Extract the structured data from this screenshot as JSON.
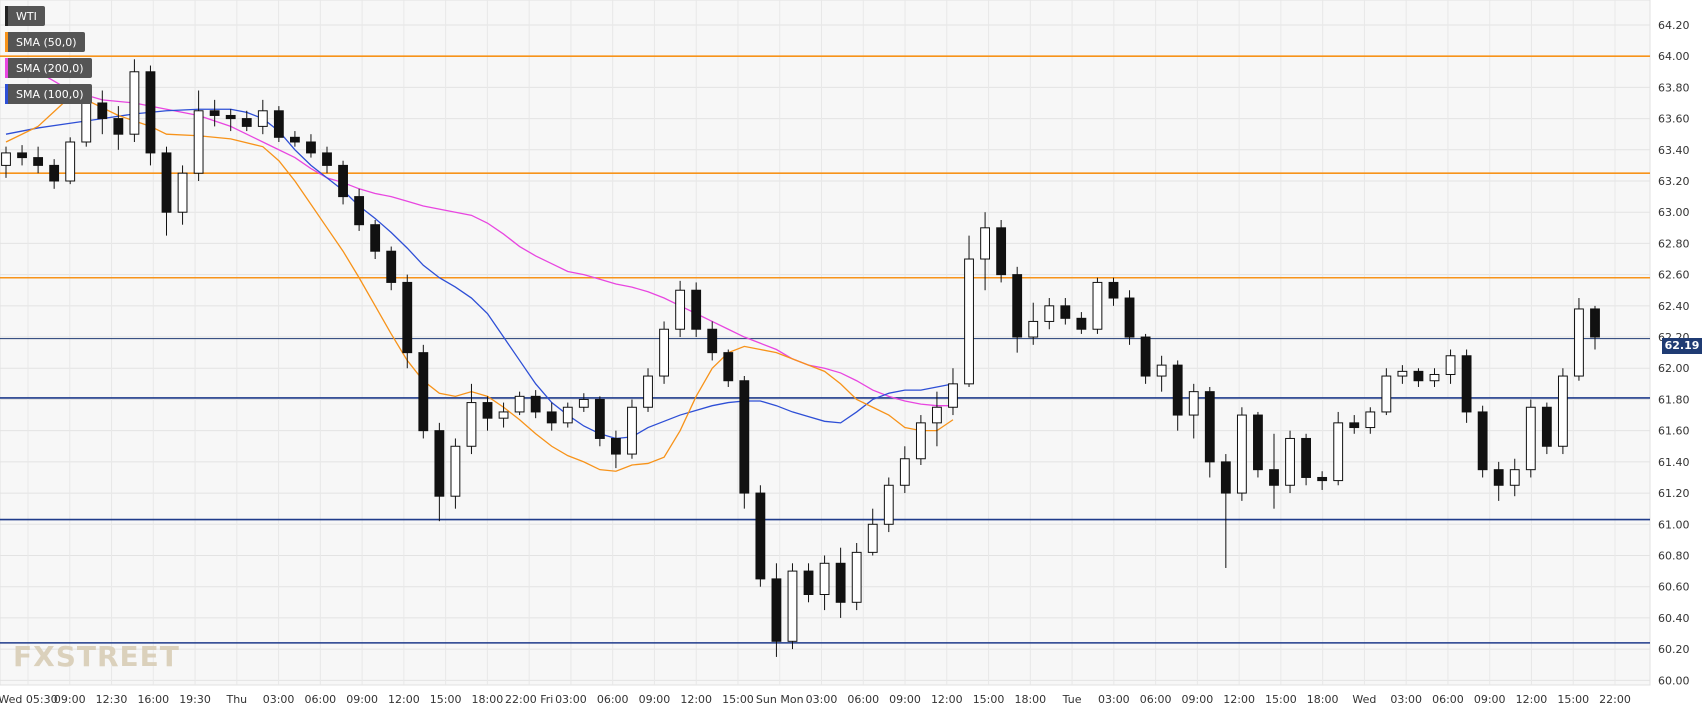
{
  "chart_data": {
    "type": "candlestick",
    "instrument": "WTI",
    "x_tick_labels": [
      "Wed 05:30",
      "09:00",
      "12:30",
      "16:00",
      "19:30",
      "Thu",
      "03:00",
      "06:00",
      "09:00",
      "12:00",
      "15:00",
      "18:00",
      "22:00 Fri",
      "03:00",
      "06:00",
      "09:00",
      "12:00",
      "15:00",
      "Sun Mon",
      "03:00",
      "06:00",
      "09:00",
      "12:00",
      "15:00",
      "18:00",
      "Tue",
      "03:00",
      "06:00",
      "09:00",
      "12:00",
      "15:00",
      "18:00",
      "Wed",
      "03:00",
      "06:00",
      "09:00",
      "12:00",
      "15:00",
      "22:00"
    ],
    "y_ticks": [
      60.0,
      60.2,
      60.4,
      60.6,
      60.8,
      61.0,
      61.2,
      61.4,
      61.6,
      61.8,
      62.0,
      62.2,
      62.4,
      62.6,
      62.8,
      63.0,
      63.2,
      63.4,
      63.6,
      63.8,
      64.0,
      64.2
    ],
    "y_tick_labels": [
      "60.00",
      "60.20",
      "60.40",
      "60.60",
      "60.80",
      "61.00",
      "61.20",
      "61.40",
      "61.60",
      "61.80",
      "62.00",
      "62.20",
      "62.40",
      "62.60",
      "62.80",
      "63.00",
      "63.20",
      "63.40",
      "63.60",
      "63.80",
      "64.00",
      "64.20"
    ],
    "ylim": [
      59.97,
      64.36
    ],
    "current_price": 62.19,
    "current_price_label": "62.19",
    "resistance_levels": [
      64.0,
      63.25,
      62.58
    ],
    "support_levels": [
      61.81,
      61.03,
      60.24
    ],
    "legend": [
      {
        "label": "WTI",
        "color": "#222222"
      },
      {
        "label": "SMA (50,0)",
        "color": "#f7931a"
      },
      {
        "label": "SMA (200,0)",
        "color": "#e846e0"
      },
      {
        "label": "SMA (100,0)",
        "color": "#2e4fd6"
      }
    ],
    "sma50": [
      [
        0,
        63.45
      ],
      [
        2,
        63.55
      ],
      [
        4,
        63.74
      ],
      [
        5,
        63.72
      ],
      [
        7,
        63.62
      ],
      [
        9,
        63.55
      ],
      [
        10,
        63.5
      ],
      [
        12,
        63.49
      ],
      [
        14,
        63.47
      ],
      [
        16,
        63.42
      ],
      [
        17,
        63.33
      ],
      [
        18,
        63.2
      ],
      [
        19,
        63.05
      ],
      [
        20,
        62.9
      ],
      [
        21,
        62.75
      ],
      [
        22,
        62.58
      ],
      [
        23,
        62.4
      ],
      [
        24,
        62.22
      ],
      [
        25,
        62.05
      ],
      [
        26,
        61.92
      ],
      [
        27,
        61.84
      ],
      [
        28,
        61.82
      ],
      [
        29,
        61.85
      ],
      [
        30,
        61.82
      ],
      [
        31,
        61.75
      ],
      [
        32,
        61.67
      ],
      [
        33,
        61.58
      ],
      [
        34,
        61.5
      ],
      [
        35,
        61.44
      ],
      [
        36,
        61.4
      ],
      [
        37,
        61.35
      ],
      [
        38,
        61.34
      ],
      [
        39,
        61.38
      ],
      [
        40,
        61.39
      ],
      [
        41,
        61.43
      ],
      [
        42,
        61.6
      ],
      [
        43,
        61.82
      ],
      [
        44,
        62.0
      ],
      [
        45,
        62.1
      ],
      [
        46,
        62.14
      ],
      [
        47,
        62.12
      ],
      [
        48,
        62.1
      ],
      [
        49,
        62.06
      ],
      [
        50,
        62.02
      ],
      [
        51,
        61.98
      ],
      [
        52,
        61.9
      ],
      [
        53,
        61.8
      ],
      [
        54,
        61.75
      ],
      [
        55,
        61.7
      ],
      [
        56,
        61.62
      ],
      [
        57,
        61.6
      ],
      [
        58,
        61.6
      ],
      [
        59,
        61.67
      ]
    ],
    "sma100": [
      [
        0,
        63.5
      ],
      [
        2,
        63.54
      ],
      [
        4,
        63.57
      ],
      [
        6,
        63.6
      ],
      [
        8,
        63.63
      ],
      [
        10,
        63.65
      ],
      [
        12,
        63.66
      ],
      [
        14,
        63.66
      ],
      [
        15,
        63.64
      ],
      [
        16,
        63.6
      ],
      [
        17,
        63.52
      ],
      [
        18,
        63.4
      ],
      [
        19,
        63.3
      ],
      [
        20,
        63.22
      ],
      [
        21,
        63.14
      ],
      [
        22,
        63.04
      ],
      [
        23,
        62.96
      ],
      [
        24,
        62.87
      ],
      [
        25,
        62.77
      ],
      [
        26,
        62.66
      ],
      [
        27,
        62.58
      ],
      [
        28,
        62.52
      ],
      [
        29,
        62.45
      ],
      [
        30,
        62.35
      ],
      [
        31,
        62.2
      ],
      [
        32,
        62.05
      ],
      [
        33,
        61.9
      ],
      [
        34,
        61.78
      ],
      [
        35,
        61.7
      ],
      [
        36,
        61.63
      ],
      [
        37,
        61.58
      ],
      [
        38,
        61.55
      ],
      [
        39,
        61.56
      ],
      [
        40,
        61.62
      ],
      [
        41,
        61.66
      ],
      [
        42,
        61.7
      ],
      [
        43,
        61.73
      ],
      [
        44,
        61.76
      ],
      [
        45,
        61.78
      ],
      [
        46,
        61.79
      ],
      [
        47,
        61.79
      ],
      [
        48,
        61.76
      ],
      [
        49,
        61.72
      ],
      [
        50,
        61.69
      ],
      [
        51,
        61.66
      ],
      [
        52,
        61.65
      ],
      [
        53,
        61.72
      ],
      [
        54,
        61.8
      ],
      [
        55,
        61.84
      ],
      [
        56,
        61.86
      ],
      [
        57,
        61.86
      ],
      [
        58,
        61.88
      ],
      [
        59,
        61.9
      ]
    ],
    "sma200": [
      [
        0,
        63.96
      ],
      [
        2,
        63.9
      ],
      [
        4,
        63.78
      ],
      [
        6,
        63.72
      ],
      [
        8,
        63.7
      ],
      [
        10,
        63.66
      ],
      [
        12,
        63.62
      ],
      [
        14,
        63.55
      ],
      [
        16,
        63.45
      ],
      [
        18,
        63.35
      ],
      [
        19,
        63.28
      ],
      [
        20,
        63.22
      ],
      [
        21,
        63.19
      ],
      [
        22,
        63.15
      ],
      [
        23,
        63.12
      ],
      [
        24,
        63.1
      ],
      [
        25,
        63.07
      ],
      [
        26,
        63.04
      ],
      [
        27,
        63.02
      ],
      [
        28,
        63.0
      ],
      [
        29,
        62.98
      ],
      [
        30,
        62.93
      ],
      [
        31,
        62.86
      ],
      [
        32,
        62.78
      ],
      [
        33,
        62.72
      ],
      [
        34,
        62.67
      ],
      [
        35,
        62.62
      ],
      [
        36,
        62.6
      ],
      [
        37,
        62.57
      ],
      [
        38,
        62.54
      ],
      [
        39,
        62.52
      ],
      [
        40,
        62.49
      ],
      [
        41,
        62.45
      ],
      [
        42,
        62.4
      ],
      [
        43,
        62.35
      ],
      [
        44,
        62.3
      ],
      [
        45,
        62.25
      ],
      [
        46,
        62.2
      ],
      [
        47,
        62.16
      ],
      [
        48,
        62.12
      ],
      [
        49,
        62.06
      ],
      [
        50,
        62.02
      ],
      [
        51,
        62.0
      ],
      [
        52,
        61.97
      ],
      [
        53,
        61.92
      ],
      [
        54,
        61.86
      ],
      [
        55,
        61.82
      ],
      [
        56,
        61.79
      ],
      [
        57,
        61.77
      ],
      [
        58,
        61.76
      ],
      [
        59,
        61.76
      ]
    ],
    "ohlc": [
      {
        "o": 63.3,
        "h": 63.42,
        "l": 63.22,
        "c": 63.38
      },
      {
        "o": 63.38,
        "h": 63.43,
        "l": 63.3,
        "c": 63.35
      },
      {
        "o": 63.35,
        "h": 63.42,
        "l": 63.25,
        "c": 63.3
      },
      {
        "o": 63.3,
        "h": 63.34,
        "l": 63.15,
        "c": 63.2
      },
      {
        "o": 63.2,
        "h": 63.48,
        "l": 63.18,
        "c": 63.45
      },
      {
        "o": 63.45,
        "h": 63.72,
        "l": 63.42,
        "c": 63.7
      },
      {
        "o": 63.7,
        "h": 63.78,
        "l": 63.5,
        "c": 63.6
      },
      {
        "o": 63.6,
        "h": 63.68,
        "l": 63.4,
        "c": 63.5
      },
      {
        "o": 63.5,
        "h": 63.98,
        "l": 63.45,
        "c": 63.9
      },
      {
        "o": 63.9,
        "h": 63.94,
        "l": 63.3,
        "c": 63.38
      },
      {
        "o": 63.38,
        "h": 63.42,
        "l": 62.85,
        "c": 63.0
      },
      {
        "o": 63.0,
        "h": 63.3,
        "l": 62.92,
        "c": 63.25
      },
      {
        "o": 63.25,
        "h": 63.78,
        "l": 63.2,
        "c": 63.65
      },
      {
        "o": 63.65,
        "h": 63.72,
        "l": 63.55,
        "c": 63.62
      },
      {
        "o": 63.62,
        "h": 63.66,
        "l": 63.52,
        "c": 63.6
      },
      {
        "o": 63.6,
        "h": 63.65,
        "l": 63.52,
        "c": 63.55
      },
      {
        "o": 63.55,
        "h": 63.72,
        "l": 63.5,
        "c": 63.65
      },
      {
        "o": 63.65,
        "h": 63.68,
        "l": 63.45,
        "c": 63.48
      },
      {
        "o": 63.48,
        "h": 63.52,
        "l": 63.42,
        "c": 63.45
      },
      {
        "o": 63.45,
        "h": 63.5,
        "l": 63.35,
        "c": 63.38
      },
      {
        "o": 63.38,
        "h": 63.42,
        "l": 63.25,
        "c": 63.3
      },
      {
        "o": 63.3,
        "h": 63.33,
        "l": 63.05,
        "c": 63.1
      },
      {
        "o": 63.1,
        "h": 63.15,
        "l": 62.88,
        "c": 62.92
      },
      {
        "o": 62.92,
        "h": 62.95,
        "l": 62.7,
        "c": 62.75
      },
      {
        "o": 62.75,
        "h": 62.78,
        "l": 62.5,
        "c": 62.55
      },
      {
        "o": 62.55,
        "h": 62.6,
        "l": 62.0,
        "c": 62.1
      },
      {
        "o": 62.1,
        "h": 62.15,
        "l": 61.55,
        "c": 61.6
      },
      {
        "o": 61.6,
        "h": 61.65,
        "l": 61.02,
        "c": 61.18
      },
      {
        "o": 61.18,
        "h": 61.55,
        "l": 61.1,
        "c": 61.5
      },
      {
        "o": 61.5,
        "h": 61.9,
        "l": 61.45,
        "c": 61.78
      },
      {
        "o": 61.78,
        "h": 61.82,
        "l": 61.6,
        "c": 61.68
      },
      {
        "o": 61.68,
        "h": 61.78,
        "l": 61.62,
        "c": 61.72
      },
      {
        "o": 61.72,
        "h": 61.85,
        "l": 61.7,
        "c": 61.82
      },
      {
        "o": 61.82,
        "h": 61.86,
        "l": 61.68,
        "c": 61.72
      },
      {
        "o": 61.72,
        "h": 61.78,
        "l": 61.6,
        "c": 61.65
      },
      {
        "o": 61.65,
        "h": 61.78,
        "l": 61.62,
        "c": 61.75
      },
      {
        "o": 61.75,
        "h": 61.84,
        "l": 61.72,
        "c": 61.8
      },
      {
        "o": 61.8,
        "h": 61.82,
        "l": 61.5,
        "c": 61.55
      },
      {
        "o": 61.55,
        "h": 61.6,
        "l": 61.36,
        "c": 61.45
      },
      {
        "o": 61.45,
        "h": 61.8,
        "l": 61.42,
        "c": 61.75
      },
      {
        "o": 61.75,
        "h": 62.0,
        "l": 61.72,
        "c": 61.95
      },
      {
        "o": 61.95,
        "h": 62.3,
        "l": 61.9,
        "c": 62.25
      },
      {
        "o": 62.25,
        "h": 62.56,
        "l": 62.2,
        "c": 62.5
      },
      {
        "o": 62.5,
        "h": 62.55,
        "l": 62.2,
        "c": 62.25
      },
      {
        "o": 62.25,
        "h": 62.3,
        "l": 62.05,
        "c": 62.1
      },
      {
        "o": 62.1,
        "h": 62.12,
        "l": 61.88,
        "c": 61.92
      },
      {
        "o": 61.92,
        "h": 61.95,
        "l": 61.1,
        "c": 61.2
      },
      {
        "o": 61.2,
        "h": 61.25,
        "l": 60.6,
        "c": 60.65
      },
      {
        "o": 60.65,
        "h": 60.75,
        "l": 60.15,
        "c": 60.25
      },
      {
        "o": 60.25,
        "h": 60.75,
        "l": 60.2,
        "c": 60.7
      },
      {
        "o": 60.7,
        "h": 60.75,
        "l": 60.5,
        "c": 60.55
      },
      {
        "o": 60.55,
        "h": 60.8,
        "l": 60.45,
        "c": 60.75
      },
      {
        "o": 60.75,
        "h": 60.85,
        "l": 60.4,
        "c": 60.5
      },
      {
        "o": 60.5,
        "h": 60.88,
        "l": 60.45,
        "c": 60.82
      },
      {
        "o": 60.82,
        "h": 61.1,
        "l": 60.8,
        "c": 61.0
      },
      {
        "o": 61.0,
        "h": 61.3,
        "l": 60.95,
        "c": 61.25
      },
      {
        "o": 61.25,
        "h": 61.5,
        "l": 61.2,
        "c": 61.42
      },
      {
        "o": 61.42,
        "h": 61.7,
        "l": 61.38,
        "c": 61.65
      },
      {
        "o": 61.65,
        "h": 61.85,
        "l": 61.5,
        "c": 61.75
      },
      {
        "o": 61.75,
        "h": 62.0,
        "l": 61.7,
        "c": 61.9
      },
      {
        "o": 61.9,
        "h": 62.85,
        "l": 61.88,
        "c": 62.7
      },
      {
        "o": 62.7,
        "h": 63.0,
        "l": 62.5,
        "c": 62.9
      },
      {
        "o": 62.9,
        "h": 62.95,
        "l": 62.55,
        "c": 62.6
      },
      {
        "o": 62.6,
        "h": 62.65,
        "l": 62.1,
        "c": 62.2
      },
      {
        "o": 62.2,
        "h": 62.42,
        "l": 62.15,
        "c": 62.3
      },
      {
        "o": 62.3,
        "h": 62.45,
        "l": 62.25,
        "c": 62.4
      },
      {
        "o": 62.4,
        "h": 62.45,
        "l": 62.28,
        "c": 62.32
      },
      {
        "o": 62.32,
        "h": 62.36,
        "l": 62.22,
        "c": 62.25
      },
      {
        "o": 62.25,
        "h": 62.58,
        "l": 62.22,
        "c": 62.55
      },
      {
        "o": 62.55,
        "h": 62.58,
        "l": 62.4,
        "c": 62.45
      },
      {
        "o": 62.45,
        "h": 62.5,
        "l": 62.15,
        "c": 62.2
      },
      {
        "o": 62.2,
        "h": 62.22,
        "l": 61.9,
        "c": 61.95
      },
      {
        "o": 61.95,
        "h": 62.08,
        "l": 61.85,
        "c": 62.02
      },
      {
        "o": 62.02,
        "h": 62.05,
        "l": 61.6,
        "c": 61.7
      },
      {
        "o": 61.7,
        "h": 61.9,
        "l": 61.55,
        "c": 61.85
      },
      {
        "o": 61.85,
        "h": 61.88,
        "l": 61.3,
        "c": 61.4
      },
      {
        "o": 61.4,
        "h": 61.45,
        "l": 60.72,
        "c": 61.2
      },
      {
        "o": 61.2,
        "h": 61.75,
        "l": 61.15,
        "c": 61.7
      },
      {
        "o": 61.7,
        "h": 61.72,
        "l": 61.3,
        "c": 61.35
      },
      {
        "o": 61.35,
        "h": 61.58,
        "l": 61.1,
        "c": 61.25
      },
      {
        "o": 61.25,
        "h": 61.6,
        "l": 61.2,
        "c": 61.55
      },
      {
        "o": 61.55,
        "h": 61.58,
        "l": 61.25,
        "c": 61.3
      },
      {
        "o": 61.3,
        "h": 61.34,
        "l": 61.22,
        "c": 61.28
      },
      {
        "o": 61.28,
        "h": 61.72,
        "l": 61.25,
        "c": 61.65
      },
      {
        "o": 61.65,
        "h": 61.7,
        "l": 61.58,
        "c": 61.62
      },
      {
        "o": 61.62,
        "h": 61.75,
        "l": 61.58,
        "c": 61.72
      },
      {
        "o": 61.72,
        "h": 62.0,
        "l": 61.7,
        "c": 61.95
      },
      {
        "o": 61.95,
        "h": 62.02,
        "l": 61.9,
        "c": 61.98
      },
      {
        "o": 61.98,
        "h": 62.0,
        "l": 61.88,
        "c": 61.92
      },
      {
        "o": 61.92,
        "h": 62.0,
        "l": 61.88,
        "c": 61.96
      },
      {
        "o": 61.96,
        "h": 62.12,
        "l": 61.9,
        "c": 62.08
      },
      {
        "o": 62.08,
        "h": 62.12,
        "l": 61.65,
        "c": 61.72
      },
      {
        "o": 61.72,
        "h": 61.76,
        "l": 61.3,
        "c": 61.35
      },
      {
        "o": 61.35,
        "h": 61.4,
        "l": 61.15,
        "c": 61.25
      },
      {
        "o": 61.25,
        "h": 61.42,
        "l": 61.18,
        "c": 61.35
      },
      {
        "o": 61.35,
        "h": 61.8,
        "l": 61.3,
        "c": 61.75
      },
      {
        "o": 61.75,
        "h": 61.78,
        "l": 61.45,
        "c": 61.5
      },
      {
        "o": 61.5,
        "h": 62.0,
        "l": 61.45,
        "c": 61.95
      },
      {
        "o": 61.95,
        "h": 62.45,
        "l": 61.92,
        "c": 62.38
      },
      {
        "o": 62.38,
        "h": 62.4,
        "l": 62.12,
        "c": 62.2
      }
    ]
  }
}
